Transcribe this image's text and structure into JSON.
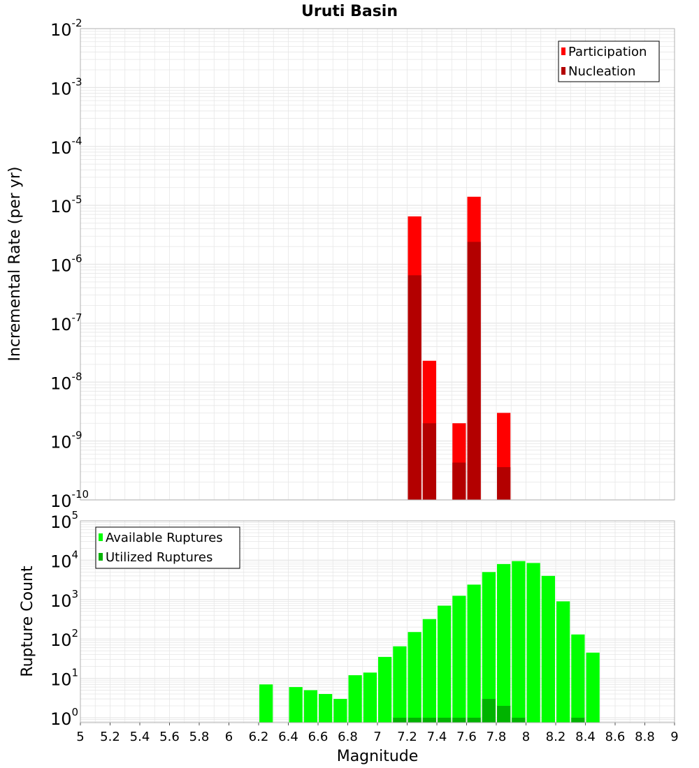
{
  "title": "Uruti Basin",
  "xlabel": "Magnitude",
  "colors": {
    "participation": "#ff0000",
    "nucleation": "#b30000",
    "available": "#00ff00",
    "utilized": "#00b300",
    "grid": "#e6e6e6",
    "frame": "#b0b0b0"
  },
  "chart_data": [
    {
      "type": "bar",
      "ylabel": "Incremental Rate (per yr)",
      "yscale": "log",
      "ylim": [
        1e-10,
        0.01
      ],
      "xlim": [
        5,
        9
      ],
      "bin_width": 0.1,
      "legend": {
        "position": "top-right",
        "entries": [
          "Participation",
          "Nucleation"
        ]
      },
      "series": [
        {
          "name": "Participation",
          "x": [
            7.25,
            7.35,
            7.55,
            7.65,
            7.85
          ],
          "values": [
            6.5e-06,
            2.3e-08,
            2e-09,
            1.4e-05,
            3e-09
          ]
        },
        {
          "name": "Nucleation",
          "x": [
            7.25,
            7.35,
            7.55,
            7.65,
            7.85
          ],
          "values": [
            6.5e-07,
            2e-09,
            4.3e-10,
            2.4e-06,
            3.6e-10
          ]
        }
      ]
    },
    {
      "type": "bar",
      "ylabel": "Rupture Count",
      "yscale": "log",
      "ylim": [
        0.75,
        100000.0
      ],
      "xlim": [
        5,
        9
      ],
      "bin_width": 0.1,
      "legend": {
        "position": "top-left",
        "entries": [
          "Available Ruptures",
          "Utilized Ruptures"
        ]
      },
      "series": [
        {
          "name": "Available Ruptures",
          "x": [
            6.25,
            6.45,
            6.55,
            6.65,
            6.75,
            6.85,
            6.95,
            7.05,
            7.15,
            7.25,
            7.35,
            7.45,
            7.55,
            7.65,
            7.75,
            7.85,
            7.95,
            8.05,
            8.15,
            8.25,
            8.35,
            8.45
          ],
          "values": [
            7,
            6,
            5,
            4,
            3,
            12,
            14,
            35,
            65,
            150,
            320,
            700,
            1250,
            2400,
            5000,
            8000,
            9500,
            8500,
            4000,
            900,
            130,
            45
          ]
        },
        {
          "name": "Utilized Ruptures",
          "x": [
            7.15,
            7.25,
            7.35,
            7.45,
            7.55,
            7.65,
            7.75,
            7.85,
            7.95,
            8.35
          ],
          "values": [
            1,
            1,
            1,
            1,
            1,
            1,
            3,
            2,
            1,
            1
          ]
        }
      ]
    }
  ],
  "xticks": [
    "5",
    "5.2",
    "5.4",
    "5.6",
    "5.8",
    "6",
    "6.2",
    "6.4",
    "6.6",
    "6.8",
    "7",
    "7.2",
    "7.4",
    "7.6",
    "7.8",
    "8",
    "8.2",
    "8.4",
    "8.6",
    "8.8",
    "9"
  ],
  "top_yticks": [
    {
      "base": "10",
      "exp": "-10",
      "value": 1e-10
    },
    {
      "base": "10",
      "exp": "-9",
      "value": 1e-09
    },
    {
      "base": "10",
      "exp": "-8",
      "value": 1e-08
    },
    {
      "base": "10",
      "exp": "-7",
      "value": 1e-07
    },
    {
      "base": "10",
      "exp": "-6",
      "value": 1e-06
    },
    {
      "base": "10",
      "exp": "-5",
      "value": 1e-05
    },
    {
      "base": "10",
      "exp": "-4",
      "value": 0.0001
    },
    {
      "base": "10",
      "exp": "-3",
      "value": 0.001
    },
    {
      "base": "10",
      "exp": "-2",
      "value": 0.01
    }
  ],
  "bottom_yticks": [
    {
      "base": "10",
      "exp": "0",
      "value": 1
    },
    {
      "base": "10",
      "exp": "1",
      "value": 10
    },
    {
      "base": "10",
      "exp": "2",
      "value": 100
    },
    {
      "base": "10",
      "exp": "3",
      "value": 1000
    },
    {
      "base": "10",
      "exp": "4",
      "value": 10000
    },
    {
      "base": "10",
      "exp": "5",
      "value": 100000
    }
  ]
}
